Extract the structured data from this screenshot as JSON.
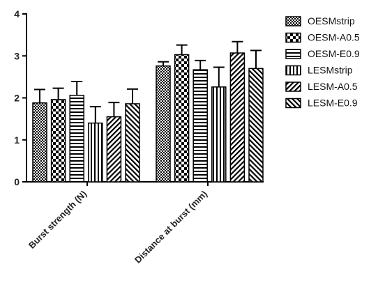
{
  "chart_data": {
    "type": "bar",
    "categories": [
      "Burst strength (N)",
      "Distance at burst (mm)"
    ],
    "series": [
      {
        "name": "OESMstrip",
        "pattern": "pat-fine-check",
        "values": [
          1.88,
          2.76
        ],
        "errors": [
          0.32,
          0.1
        ]
      },
      {
        "name": "OESM-A0.5",
        "pattern": "pat-big-check",
        "values": [
          1.96,
          3.03
        ],
        "errors": [
          0.27,
          0.23
        ]
      },
      {
        "name": "OESM-E0.9",
        "pattern": "pat-hlines",
        "values": [
          2.06,
          2.67
        ],
        "errors": [
          0.33,
          0.22
        ]
      },
      {
        "name": "LESMstrip",
        "pattern": "pat-vlines",
        "values": [
          1.4,
          2.26
        ],
        "errors": [
          0.39,
          0.47
        ]
      },
      {
        "name": "LESM-A0.5",
        "pattern": "pat-diag-fwd",
        "values": [
          1.55,
          3.07
        ],
        "errors": [
          0.34,
          0.27
        ]
      },
      {
        "name": "LESM-E0.9",
        "pattern": "pat-diag-back",
        "values": [
          1.86,
          2.7
        ],
        "errors": [
          0.35,
          0.43
        ]
      }
    ],
    "yticks": [
      0,
      1,
      2,
      3,
      4
    ],
    "ylim": [
      0,
      4
    ],
    "title": "",
    "xlabel": "",
    "ylabel": "",
    "legend_position": "right",
    "grid": false,
    "bar_color": "#000000"
  }
}
